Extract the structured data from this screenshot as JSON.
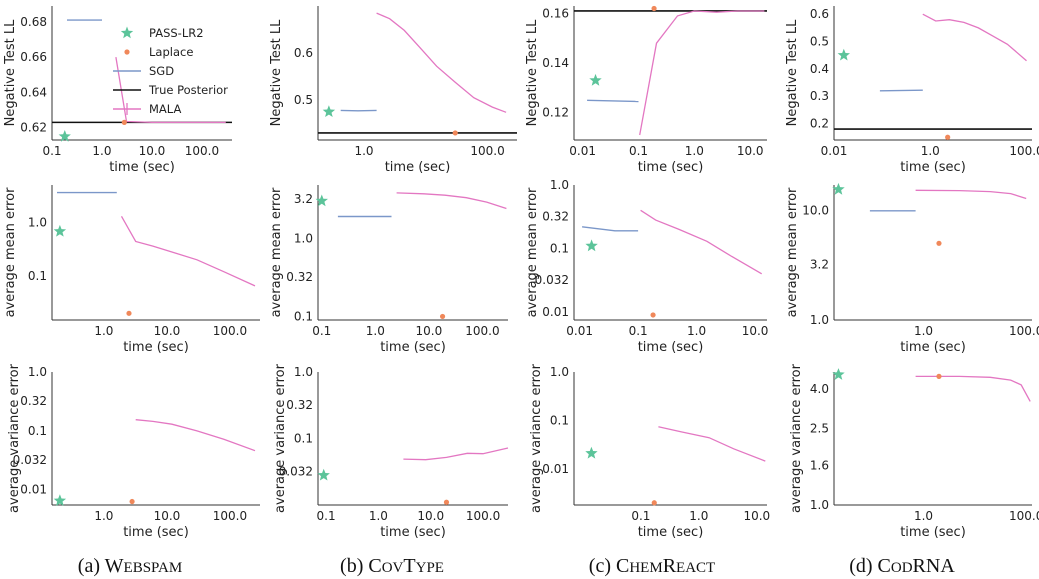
{
  "colors": {
    "pass": "#5cc49a",
    "laplace": "#f0885a",
    "sgd": "#7b97c9",
    "truth": "#111111",
    "mala": "#e377c2"
  },
  "legend": [
    {
      "label": "PASS-LR2",
      "key": "pass",
      "marker": "star"
    },
    {
      "label": "Laplace",
      "key": "laplace",
      "marker": "dot"
    },
    {
      "label": "SGD",
      "key": "sgd",
      "marker": "line"
    },
    {
      "label": "True Posterior",
      "key": "truth",
      "marker": "line"
    },
    {
      "label": "MALA",
      "key": "mala",
      "marker": "line-plus"
    }
  ],
  "captions": [
    {
      "prefix": "(a) ",
      "big1": "W",
      "small1": "EBSPAM",
      "big2": "",
      "small2": ""
    },
    {
      "prefix": "(b) ",
      "big1": "C",
      "small1": "OV",
      "big2": "T",
      "small2": "YPE"
    },
    {
      "prefix": "(c) ",
      "big1": "C",
      "small1": "HEM",
      "big2": "R",
      "small2": "EACT"
    },
    {
      "prefix": "(d) ",
      "big1": "C",
      "small1": "OD",
      "big2": "RNA",
      "small2": ""
    }
  ],
  "chart_data": [
    {
      "id": "a1",
      "type": "line",
      "xscale": "log",
      "yscale": "linear",
      "xlim": [
        0.1,
        400
      ],
      "ylim": [
        0.613,
        0.689
      ],
      "xticks": [
        {
          "v": 0.1,
          "l": "0.1"
        },
        {
          "v": 1,
          "l": "1.0"
        },
        {
          "v": 10,
          "l": "10.0"
        },
        {
          "v": 100,
          "l": "100.0"
        }
      ],
      "yticks": [
        {
          "v": 0.62,
          "l": "0.62"
        },
        {
          "v": 0.64,
          "l": "0.64"
        },
        {
          "v": 0.66,
          "l": "0.66"
        },
        {
          "v": 0.68,
          "l": "0.68"
        }
      ],
      "xlabel": "time (sec)",
      "ylabel": "Negative Test LL",
      "pass": {
        "x": 0.18,
        "y": 0.615
      },
      "laplace": {
        "x": 2.8,
        "y": 0.623
      },
      "sgd": [
        [
          0.2,
          0.681
        ],
        [
          1.0,
          0.681
        ]
      ],
      "truth": [
        0.623
      ],
      "mala": [
        [
          1.9,
          0.66
        ],
        [
          3.1,
          0.6235
        ],
        [
          10,
          0.623
        ],
        [
          100,
          0.623
        ],
        [
          300,
          0.623
        ]
      ]
    },
    {
      "id": "b1",
      "type": "line",
      "xscale": "log",
      "yscale": "linear",
      "xlim": [
        0.18,
        300
      ],
      "ylim": [
        0.415,
        0.7
      ],
      "xticks": [
        {
          "v": 1,
          "l": "1.0"
        },
        {
          "v": 100,
          "l": "100.0"
        }
      ],
      "yticks": [
        {
          "v": 0.5,
          "l": "0.5"
        },
        {
          "v": 0.6,
          "l": "0.6"
        }
      ],
      "xlabel": "time (sec)",
      "ylabel": "Negative Test LL",
      "pass": {
        "x": 0.27,
        "y": 0.475
      },
      "laplace": {
        "x": 30,
        "y": 0.43
      },
      "sgd": [
        [
          0.42,
          0.478
        ],
        [
          0.8,
          0.477
        ],
        [
          1.6,
          0.478
        ]
      ],
      "truth": [
        0.43
      ],
      "mala": [
        [
          1.6,
          0.685
        ],
        [
          2.6,
          0.673
        ],
        [
          4.5,
          0.648
        ],
        [
          8,
          0.612
        ],
        [
          15,
          0.572
        ],
        [
          30,
          0.538
        ],
        [
          60,
          0.505
        ],
        [
          120,
          0.485
        ],
        [
          200,
          0.474
        ]
      ]
    },
    {
      "id": "c1",
      "type": "line",
      "xscale": "log",
      "yscale": "linear",
      "xlim": [
        0.007,
        20
      ],
      "ylim": [
        0.109,
        0.163
      ],
      "xticks": [
        {
          "v": 0.01,
          "l": "0.01"
        },
        {
          "v": 0.1,
          "l": "0.1"
        },
        {
          "v": 1,
          "l": "1.0"
        },
        {
          "v": 10,
          "l": "10.0"
        }
      ],
      "yticks": [
        {
          "v": 0.12,
          "l": "0.12"
        },
        {
          "v": 0.14,
          "l": "0.14"
        },
        {
          "v": 0.16,
          "l": "0.16"
        }
      ],
      "xlabel": "time (sec)",
      "ylabel": "Negative Test LL",
      "pass": {
        "x": 0.017,
        "y": 0.133
      },
      "laplace": {
        "x": 0.19,
        "y": 0.162
      },
      "sgd": [
        [
          0.012,
          0.125
        ],
        [
          0.1,
          0.1245
        ]
      ],
      "truth": [
        0.161
      ],
      "mala": [
        [
          0.105,
          0.111
        ],
        [
          0.21,
          0.148
        ],
        [
          0.5,
          0.159
        ],
        [
          1.0,
          0.161
        ],
        [
          2.5,
          0.1605
        ],
        [
          6,
          0.161
        ],
        [
          18,
          0.161
        ]
      ]
    },
    {
      "id": "d1",
      "type": "line",
      "xscale": "log",
      "yscale": "linear",
      "xlim": [
        0.01,
        130
      ],
      "ylim": [
        0.14,
        0.63
      ],
      "xticks": [
        {
          "v": 0.01,
          "l": "0.01"
        },
        {
          "v": 1,
          "l": "1.0"
        },
        {
          "v": 100,
          "l": "100.0"
        }
      ],
      "yticks": [
        {
          "v": 0.2,
          "l": "0.2"
        },
        {
          "v": 0.3,
          "l": "0.3"
        },
        {
          "v": 0.4,
          "l": "0.4"
        },
        {
          "v": 0.5,
          "l": "0.5"
        },
        {
          "v": 0.6,
          "l": "0.6"
        }
      ],
      "xlabel": "time (sec)",
      "ylabel": "Negative Test LL",
      "pass": {
        "x": 0.016,
        "y": 0.45
      },
      "laplace": {
        "x": 2.3,
        "y": 0.15
      },
      "sgd": [
        [
          0.09,
          0.32
        ],
        [
          0.7,
          0.322
        ]
      ],
      "truth": [
        0.18
      ],
      "mala": [
        [
          0.7,
          0.6
        ],
        [
          1.3,
          0.575
        ],
        [
          2.5,
          0.58
        ],
        [
          5,
          0.57
        ],
        [
          10,
          0.55
        ],
        [
          20,
          0.52
        ],
        [
          40,
          0.49
        ],
        [
          100,
          0.43
        ]
      ]
    },
    {
      "id": "a2",
      "type": "line",
      "xscale": "log",
      "yscale": "log",
      "xlim": [
        0.15,
        300
      ],
      "ylim": [
        0.015,
        5
      ],
      "xticks": [
        {
          "v": 1,
          "l": "1.0"
        },
        {
          "v": 10,
          "l": "10.0"
        },
        {
          "v": 100,
          "l": "100.0"
        }
      ],
      "yticks": [
        {
          "v": 0.1,
          "l": "0.1"
        },
        {
          "v": 1,
          "l": "1.0"
        }
      ],
      "xlabel": "time (sec)",
      "ylabel": "average mean error",
      "pass": {
        "x": 0.2,
        "y": 0.68
      },
      "laplace": {
        "x": 2.5,
        "y": 0.02
      },
      "sgd": [
        [
          0.18,
          3.6
        ],
        [
          1.6,
          3.6
        ]
      ],
      "mala": [
        [
          1.9,
          1.3
        ],
        [
          3.2,
          0.44
        ],
        [
          6,
          0.36
        ],
        [
          12,
          0.28
        ],
        [
          30,
          0.2
        ],
        [
          80,
          0.12
        ],
        [
          250,
          0.065
        ]
      ]
    },
    {
      "id": "b2",
      "type": "line",
      "xscale": "log",
      "yscale": "log",
      "xlim": [
        0.085,
        300
      ],
      "ylim": [
        0.09,
        4.8
      ],
      "xticks": [
        {
          "v": 0.1,
          "l": "0.1"
        },
        {
          "v": 1,
          "l": "1.0"
        },
        {
          "v": 10,
          "l": "10.0"
        },
        {
          "v": 100,
          "l": "100.0"
        }
      ],
      "yticks": [
        {
          "v": 0.1,
          "l": "0.1"
        },
        {
          "v": 0.32,
          "l": "0.32"
        },
        {
          "v": 1,
          "l": "1.0"
        },
        {
          "v": 3.2,
          "l": "3.2"
        }
      ],
      "xlabel": "time (sec)",
      "ylabel": "average mean error",
      "pass": {
        "x": 0.1,
        "y": 3.0
      },
      "laplace": {
        "x": 18,
        "y": 0.1
      },
      "sgd": [
        [
          0.2,
          1.9
        ],
        [
          2.0,
          1.9
        ]
      ],
      "mala": [
        [
          2.5,
          3.8
        ],
        [
          8,
          3.7
        ],
        [
          20,
          3.55
        ],
        [
          50,
          3.3
        ],
        [
          120,
          2.9
        ],
        [
          280,
          2.4
        ]
      ]
    },
    {
      "id": "c2",
      "type": "line",
      "xscale": "log",
      "yscale": "log",
      "xlim": [
        0.008,
        16
      ],
      "ylim": [
        0.0075,
        1.0
      ],
      "xticks": [
        {
          "v": 0.01,
          "l": "0.01"
        },
        {
          "v": 0.1,
          "l": "0.1"
        },
        {
          "v": 1,
          "l": "1.0"
        },
        {
          "v": 10,
          "l": "10.0"
        }
      ],
      "yticks": [
        {
          "v": 0.01,
          "l": "0.01"
        },
        {
          "v": 0.032,
          "l": "0.032"
        },
        {
          "v": 0.1,
          "l": "0.1"
        },
        {
          "v": 0.32,
          "l": "0.32"
        },
        {
          "v": 1,
          "l": "1.0"
        }
      ],
      "xlabel": "time (sec)",
      "ylabel": "average mean error",
      "pass": {
        "x": 0.016,
        "y": 0.11
      },
      "laplace": {
        "x": 0.18,
        "y": 0.009
      },
      "sgd": [
        [
          0.011,
          0.22
        ],
        [
          0.04,
          0.19
        ],
        [
          0.1,
          0.19
        ]
      ],
      "mala": [
        [
          0.11,
          0.4
        ],
        [
          0.2,
          0.28
        ],
        [
          0.5,
          0.2
        ],
        [
          1.5,
          0.13
        ],
        [
          4,
          0.075
        ],
        [
          13,
          0.04
        ]
      ]
    },
    {
      "id": "d2",
      "type": "line",
      "xscale": "log",
      "yscale": "log",
      "xlim": [
        0.018,
        130
      ],
      "ylim": [
        1.0,
        17
      ],
      "xticks": [
        {
          "v": 1,
          "l": "1.0"
        },
        {
          "v": 100,
          "l": "100.0"
        }
      ],
      "yticks": [
        {
          "v": 1,
          "l": "1.0"
        },
        {
          "v": 3.2,
          "l": "3.2"
        },
        {
          "v": 10,
          "l": "10.0"
        }
      ],
      "xlabel": "time (sec)",
      "ylabel": "average mean error",
      "pass": {
        "x": 0.022,
        "y": 15.5
      },
      "laplace": {
        "x": 2.0,
        "y": 5.0
      },
      "sgd": [
        [
          0.09,
          9.9
        ],
        [
          0.7,
          9.9
        ]
      ],
      "mala": [
        [
          0.7,
          15.2
        ],
        [
          5,
          15.1
        ],
        [
          20,
          14.8
        ],
        [
          50,
          14.2
        ],
        [
          100,
          12.8
        ]
      ]
    },
    {
      "id": "a3",
      "type": "line",
      "xscale": "log",
      "yscale": "log",
      "xlim": [
        0.15,
        300
      ],
      "ylim": [
        0.0055,
        1.0
      ],
      "xticks": [
        {
          "v": 1,
          "l": "1.0"
        },
        {
          "v": 10,
          "l": "10.0"
        },
        {
          "v": 100,
          "l": "100.0"
        }
      ],
      "yticks": [
        {
          "v": 0.01,
          "l": "0.01"
        },
        {
          "v": 0.032,
          "l": "0.032"
        },
        {
          "v": 0.1,
          "l": "0.1"
        },
        {
          "v": 0.32,
          "l": "0.32"
        },
        {
          "v": 1,
          "l": "1.0"
        }
      ],
      "xlabel": "time (sec)",
      "ylabel": "average variance error",
      "pass": {
        "x": 0.2,
        "y": 0.0065
      },
      "laplace": {
        "x": 2.8,
        "y": 0.0063
      },
      "sgd": [],
      "mala": [
        [
          3.2,
          0.155
        ],
        [
          6,
          0.145
        ],
        [
          12,
          0.13
        ],
        [
          30,
          0.1
        ],
        [
          80,
          0.072
        ],
        [
          250,
          0.046
        ]
      ]
    },
    {
      "id": "b3",
      "type": "line",
      "xscale": "log",
      "yscale": "log",
      "xlim": [
        0.07,
        300
      ],
      "ylim": [
        0.01,
        1.0
      ],
      "xticks": [
        {
          "v": 0.1,
          "l": "0.1"
        },
        {
          "v": 1,
          "l": "1.0"
        },
        {
          "v": 10,
          "l": "10.0"
        },
        {
          "v": 100,
          "l": "100.0"
        }
      ],
      "yticks": [
        {
          "v": 0.032,
          "l": "0.032"
        },
        {
          "v": 0.1,
          "l": "0.1"
        },
        {
          "v": 0.32,
          "l": "0.32"
        },
        {
          "v": 1,
          "l": "1.0"
        }
      ],
      "xlabel": "time (sec)",
      "ylabel": "average variance error",
      "pass": {
        "x": 0.09,
        "y": 0.028
      },
      "laplace": {
        "x": 20,
        "y": 0.011
      },
      "sgd": [],
      "mala": [
        [
          3,
          0.049
        ],
        [
          8,
          0.048
        ],
        [
          20,
          0.052
        ],
        [
          50,
          0.06
        ],
        [
          100,
          0.059
        ],
        [
          300,
          0.072
        ]
      ]
    },
    {
      "id": "c3",
      "type": "line",
      "xscale": "log",
      "yscale": "log",
      "xlim": [
        0.007,
        15
      ],
      "ylim": [
        0.0018,
        1.0
      ],
      "xticks": [
        {
          "v": 0.1,
          "l": "0.1"
        },
        {
          "v": 1,
          "l": "1.0"
        },
        {
          "v": 10,
          "l": "10.0"
        }
      ],
      "yticks": [
        {
          "v": 0.01,
          "l": "0.01"
        },
        {
          "v": 0.1,
          "l": "0.1"
        },
        {
          "v": 1,
          "l": "1.0"
        }
      ],
      "xlabel": "time (sec)",
      "ylabel": "average variance error",
      "pass": {
        "x": 0.014,
        "y": 0.021
      },
      "laplace": {
        "x": 0.17,
        "y": 0.002
      },
      "sgd": [],
      "mala": [
        [
          0.2,
          0.074
        ],
        [
          0.5,
          0.058
        ],
        [
          1.5,
          0.044
        ],
        [
          4,
          0.026
        ],
        [
          14,
          0.0145
        ]
      ]
    },
    {
      "id": "d3",
      "type": "line",
      "xscale": "log",
      "yscale": "log",
      "xlim": [
        0.018,
        130
      ],
      "ylim": [
        1.0,
        4.9
      ],
      "xticks": [
        {
          "v": 1,
          "l": "1.0"
        },
        {
          "v": 100,
          "l": "100.0"
        }
      ],
      "yticks": [
        {
          "v": 1,
          "l": "1.0"
        },
        {
          "v": 1.6,
          "l": "1.6"
        },
        {
          "v": 2.5,
          "l": "2.5"
        },
        {
          "v": 4,
          "l": "4.0"
        }
      ],
      "xlabel": "time (sec)",
      "ylabel": "average variance error",
      "pass": {
        "x": 0.022,
        "y": 4.75
      },
      "laplace": {
        "x": 2.0,
        "y": 4.65
      },
      "sgd": [],
      "mala": [
        [
          0.7,
          4.65
        ],
        [
          5,
          4.65
        ],
        [
          20,
          4.6
        ],
        [
          50,
          4.45
        ],
        [
          80,
          4.2
        ],
        [
          120,
          3.45
        ]
      ]
    }
  ]
}
